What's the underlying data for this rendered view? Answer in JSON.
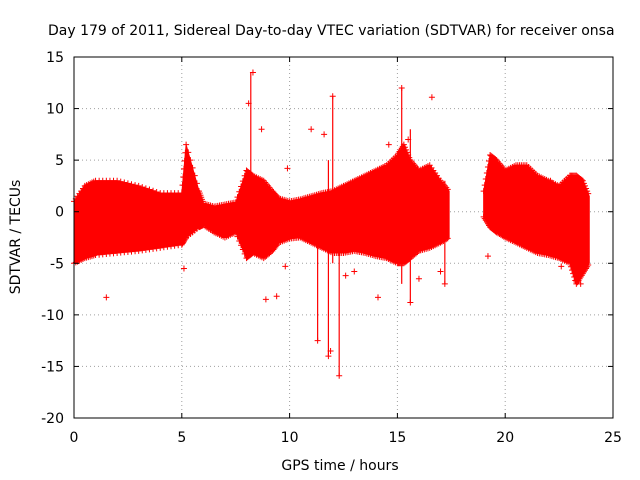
{
  "chart_data": {
    "type": "scatter",
    "title": "Day 179 of 2011, Sidereal Day-to-day VTEC variation (SDTVAR) for receiver onsa",
    "xlabel": "GPS time / hours",
    "ylabel": "SDTVAR / TECUs",
    "xlim": [
      0,
      25
    ],
    "ylim": [
      -20,
      15
    ],
    "xticks": [
      0,
      5,
      10,
      15,
      20,
      25
    ],
    "yticks": [
      -20,
      -15,
      -10,
      -5,
      0,
      5,
      10,
      15
    ],
    "grid": true,
    "marker": "+",
    "color": "#ff0000",
    "envelope": {
      "description": "approximate upper/lower extent of the dense band of points",
      "x": [
        0.0,
        0.5,
        1.0,
        2.0,
        3.0,
        4.0,
        5.0,
        5.2,
        5.8,
        6.0,
        6.5,
        7.0,
        7.5,
        8.0,
        8.3,
        8.8,
        9.2,
        9.5,
        10.0,
        10.5,
        11.0,
        11.5,
        12.0,
        12.5,
        13.0,
        13.5,
        14.0,
        14.5,
        15.0,
        15.3,
        15.6,
        16.0,
        16.5,
        17.0,
        17.4
      ],
      "upper": [
        1.0,
        2.5,
        3.0,
        3.0,
        2.5,
        1.8,
        1.8,
        6.5,
        2.0,
        0.8,
        0.5,
        0.7,
        0.9,
        4.0,
        3.5,
        3.0,
        2.0,
        1.3,
        1.0,
        1.2,
        1.5,
        1.8,
        2.0,
        2.5,
        3.0,
        3.5,
        4.0,
        4.5,
        5.5,
        6.5,
        5.0,
        4.0,
        4.5,
        3.0,
        2.0
      ],
      "lower": [
        -5.0,
        -4.5,
        -4.2,
        -4.0,
        -3.8,
        -3.5,
        -3.2,
        -2.5,
        -1.5,
        -1.3,
        -2.0,
        -2.5,
        -2.0,
        -4.5,
        -4.0,
        -4.5,
        -3.8,
        -3.0,
        -2.6,
        -2.5,
        -3.0,
        -3.5,
        -4.0,
        -4.0,
        -3.8,
        -4.0,
        -4.3,
        -4.5,
        -5.0,
        -5.0,
        -4.5,
        -3.8,
        -3.5,
        -3.0,
        -2.5
      ],
      "x2": [
        19.0,
        19.3,
        19.6,
        20.0,
        20.5,
        21.0,
        21.5,
        22.0,
        22.5,
        23.0,
        23.3,
        23.6,
        23.9
      ],
      "upper2": [
        2.0,
        5.5,
        5.0,
        4.0,
        4.5,
        4.5,
        3.5,
        3.0,
        2.5,
        3.5,
        3.5,
        3.0,
        1.5
      ],
      "lower2": [
        -0.5,
        -1.5,
        -2.0,
        -2.5,
        -3.0,
        -3.5,
        -4.0,
        -4.2,
        -4.5,
        -5.0,
        -7.0,
        -6.0,
        -5.0
      ]
    },
    "outliers": [
      {
        "x": 1.5,
        "y": -8.3
      },
      {
        "x": 5.1,
        "y": -5.5
      },
      {
        "x": 8.1,
        "y": 10.5
      },
      {
        "x": 8.3,
        "y": 13.5
      },
      {
        "x": 8.7,
        "y": 8.0
      },
      {
        "x": 8.9,
        "y": -8.5
      },
      {
        "x": 9.4,
        "y": -8.2
      },
      {
        "x": 9.9,
        "y": 4.2
      },
      {
        "x": 9.8,
        "y": -5.3
      },
      {
        "x": 11.0,
        "y": 8.0
      },
      {
        "x": 11.3,
        "y": -12.5
      },
      {
        "x": 11.6,
        "y": 7.5
      },
      {
        "x": 11.8,
        "y": -14.0
      },
      {
        "x": 11.9,
        "y": -13.5
      },
      {
        "x": 12.0,
        "y": 11.2
      },
      {
        "x": 12.3,
        "y": -15.9
      },
      {
        "x": 12.6,
        "y": -6.2
      },
      {
        "x": 13.0,
        "y": -5.8
      },
      {
        "x": 14.1,
        "y": -8.3
      },
      {
        "x": 14.6,
        "y": 6.5
      },
      {
        "x": 15.2,
        "y": 12.0
      },
      {
        "x": 15.5,
        "y": 7.0
      },
      {
        "x": 15.6,
        "y": -8.8
      },
      {
        "x": 16.0,
        "y": -6.5
      },
      {
        "x": 16.6,
        "y": 11.1
      },
      {
        "x": 17.2,
        "y": -7.0
      },
      {
        "x": 17.0,
        "y": -5.8
      },
      {
        "x": 19.2,
        "y": -4.3
      },
      {
        "x": 21.8,
        "y": 2.5
      },
      {
        "x": 22.1,
        "y": 3.0
      },
      {
        "x": 22.6,
        "y": -5.3
      },
      {
        "x": 23.3,
        "y": -6.8
      },
      {
        "x": 23.5,
        "y": -7.0
      }
    ],
    "spikes": [
      {
        "x": 8.2,
        "y1": 13.5,
        "y2": -3.0
      },
      {
        "x": 11.3,
        "y1": 1.0,
        "y2": -12.5
      },
      {
        "x": 11.8,
        "y1": 5.0,
        "y2": -14.0
      },
      {
        "x": 12.0,
        "y1": 11.2,
        "y2": -5.0
      },
      {
        "x": 12.3,
        "y1": 2.0,
        "y2": -15.9
      },
      {
        "x": 15.2,
        "y1": 12.0,
        "y2": -7.0
      },
      {
        "x": 15.6,
        "y1": 8.0,
        "y2": -8.8
      },
      {
        "x": 17.2,
        "y1": 3.0,
        "y2": -7.0
      }
    ]
  }
}
